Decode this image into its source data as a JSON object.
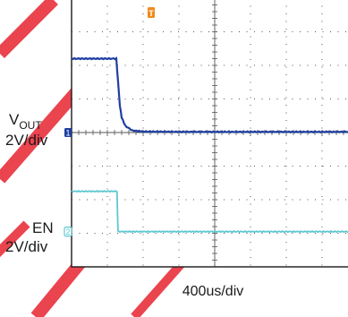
{
  "chart_data": {
    "type": "line",
    "title": "",
    "grid": true,
    "xlabel": "400us/div",
    "time_per_div_us": 400,
    "divisions": {
      "x": 8,
      "y": 8
    },
    "trigger_marker": "T",
    "channels": [
      {
        "id": "1",
        "name_main": "V",
        "name_sub": "OUT",
        "scale": "2V/div",
        "color": "#1f3fa0",
        "marker_div": 4.0,
        "points": [
          [
            0.0,
            6.2
          ],
          [
            1.25,
            6.2
          ],
          [
            1.3,
            5.5
          ],
          [
            1.35,
            4.8
          ],
          [
            1.4,
            4.45
          ],
          [
            1.5,
            4.2
          ],
          [
            1.7,
            4.06
          ],
          [
            2.0,
            4.03
          ],
          [
            3.0,
            4.02
          ],
          [
            8.0,
            4.02
          ]
        ]
      },
      {
        "id": "2",
        "name_main": "EN",
        "name_sub": "",
        "scale": "2V/div",
        "color": "#5ec8d0",
        "marker_div": 1.05,
        "points": [
          [
            0.0,
            2.25
          ],
          [
            1.27,
            2.25
          ],
          [
            1.29,
            1.3
          ],
          [
            1.3,
            1.05
          ],
          [
            8.0,
            1.05
          ]
        ]
      }
    ]
  },
  "watermark": {
    "color": "#e8303c"
  }
}
